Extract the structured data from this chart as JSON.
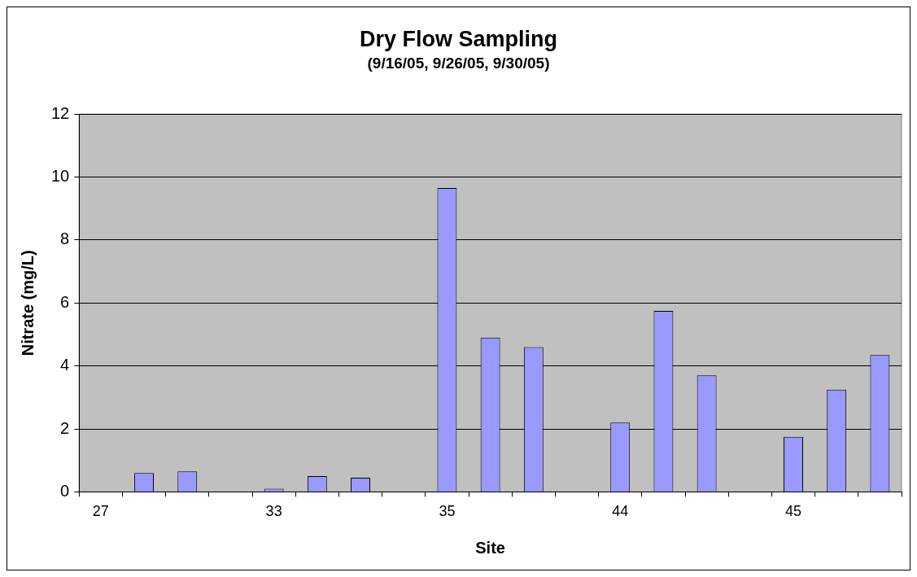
{
  "chart_data": {
    "type": "bar",
    "title": "Dry Flow Sampling",
    "subtitle": "(9/16/05, 9/26/05, 9/30/05)",
    "xlabel": "Site",
    "ylabel": "Nitrate (mg/L)",
    "categories": [
      "27",
      null,
      null,
      null,
      "33",
      null,
      null,
      null,
      "35",
      null,
      null,
      null,
      "44",
      null,
      null,
      null,
      "45",
      null,
      null
    ],
    "values": [
      null,
      0.6,
      0.65,
      null,
      0.1,
      0.5,
      0.45,
      null,
      9.65,
      4.9,
      4.6,
      null,
      2.2,
      5.75,
      3.7,
      null,
      1.75,
      3.25,
      4.35
    ],
    "color": "#9999ff",
    "ylim": [
      0,
      12
    ],
    "yticks": [
      0,
      2,
      4,
      6,
      8,
      10,
      12
    ],
    "grid": "y",
    "legend": false
  }
}
